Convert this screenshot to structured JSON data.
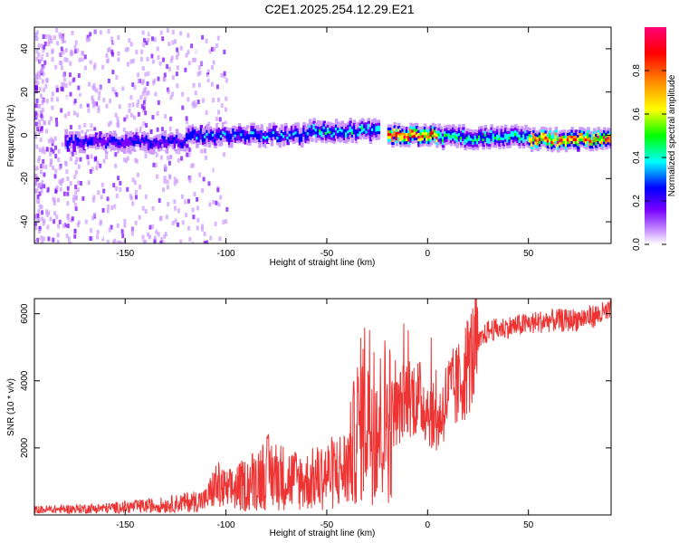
{
  "title": "C2E1.2025.254.12.29.E21",
  "colors": {
    "snr_line": "#ee3333",
    "axis": "#000000"
  },
  "chart_data": [
    {
      "type": "heatmap",
      "title": "C2E1.2025.254.12.29.E21",
      "xlabel": "Height of straight line (km)",
      "ylabel": "Frequency (Hz)",
      "xlim": [
        -195,
        91
      ],
      "ylim": [
        -50,
        50
      ],
      "x_ticks": [
        -150,
        -100,
        -50,
        0,
        50
      ],
      "y_ticks": [
        -40,
        -20,
        0,
        20,
        40
      ],
      "colorbar": {
        "label": "Normalized spectral amplitude",
        "range": [
          0,
          1
        ],
        "ticks": [
          "0.0",
          "0.2",
          "0.4",
          "0.6",
          "0.8"
        ],
        "tick_values": [
          0.0,
          0.2,
          0.4,
          0.6,
          0.8
        ],
        "colors": [
          "#ffffff",
          "#cc99ff",
          "#7700ff",
          "#0000ff",
          "#00ffff",
          "#00ff00",
          "#ffff00",
          "#ff8800",
          "#ff0000",
          "#ff0077"
        ]
      },
      "ridge_segments": [
        {
          "x_start": -180,
          "x_end": -120,
          "center_hz": -3,
          "amplitude": 0.32
        },
        {
          "x_start": -120,
          "x_end": -60,
          "center_hz": 0,
          "amplitude": 0.38
        },
        {
          "x_start": -60,
          "x_end": -25,
          "center_hz": 2,
          "amplitude": 0.45
        },
        {
          "x_start": -20,
          "x_end": 5,
          "center_hz": 0,
          "amplitude": 0.9
        },
        {
          "x_start": 5,
          "x_end": 50,
          "center_hz": -1,
          "amplitude": 0.5
        },
        {
          "x_start": 50,
          "x_end": 90,
          "center_hz": -2,
          "amplitude": 0.85
        }
      ]
    },
    {
      "type": "line",
      "title": "",
      "xlabel": "Height of straight line (km)",
      "ylabel": "SNR (10 * v/v)",
      "xlim": [
        -195,
        91
      ],
      "ylim": [
        0,
        6450
      ],
      "x_ticks": [
        -150,
        -100,
        -50,
        0,
        50
      ],
      "y_ticks": [
        2000,
        4000,
        6000
      ],
      "series": [
        {
          "name": "SNR",
          "x": [
            -195,
            -160,
            -130,
            -110,
            -105,
            -100,
            -90,
            -80,
            -70,
            -60,
            -50,
            -40,
            -35,
            -30,
            -25,
            -20,
            -15,
            -10,
            -5,
            0,
            5,
            10,
            15,
            20,
            25,
            30,
            40,
            50,
            60,
            70,
            80,
            91
          ],
          "values": [
            150,
            200,
            300,
            450,
            900,
            700,
            900,
            1300,
            1100,
            1000,
            1200,
            1400,
            2500,
            3400,
            2500,
            3000,
            3100,
            3600,
            3500,
            3200,
            2700,
            3600,
            3800,
            4500,
            5100,
            5500,
            5600,
            5700,
            5800,
            5800,
            5900,
            6050
          ]
        }
      ]
    }
  ]
}
